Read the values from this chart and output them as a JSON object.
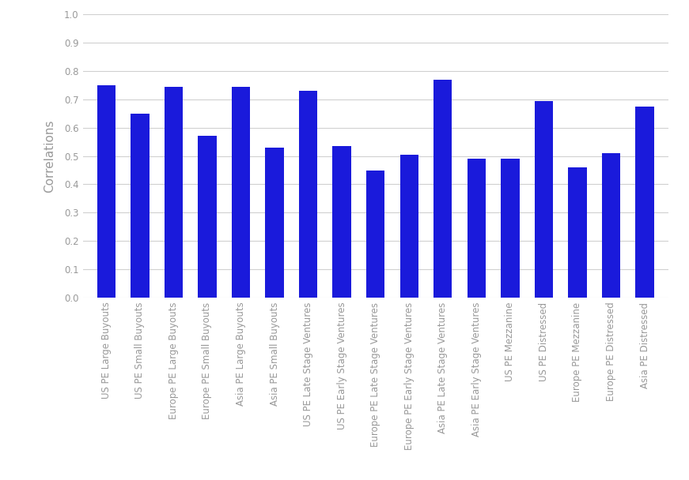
{
  "categories": [
    "US PE Large Buyouts",
    "US PE Small Buyouts",
    "Europe PE Large Buyouts",
    "Europe PE Small Buyouts",
    "Asia PE Large Buyouts",
    "Asia PE Small Buyouts",
    "US PE Late Stage Ventures",
    "US PE Early Stage Ventures",
    "Europe PE Late Stage Ventures",
    "Europe PE Early Stage Ventures",
    "Asia PE Late Stage Ventures",
    "Asia PE Early Stage Ventures",
    "US PE Mezzanine",
    "US PE Distressed",
    "Europe PE Mezzanine",
    "Europe PE Distressed",
    "Asia PE Distressed"
  ],
  "values": [
    0.75,
    0.65,
    0.745,
    0.57,
    0.745,
    0.53,
    0.73,
    0.535,
    0.45,
    0.505,
    0.77,
    0.49,
    0.49,
    0.695,
    0.46,
    0.51,
    0.675
  ],
  "bar_color": "#1a1adb",
  "ylabel": "Correlations",
  "ylim": [
    0.0,
    1.0
  ],
  "yticks": [
    0.0,
    0.1,
    0.2,
    0.3,
    0.4,
    0.5,
    0.6,
    0.7,
    0.8,
    0.9,
    1.0
  ],
  "background_color": "#ffffff",
  "grid_color": "#d0d0d0",
  "tick_label_fontsize": 8.5,
  "ylabel_fontsize": 11,
  "ytick_color": "#999999",
  "bar_width": 0.55
}
